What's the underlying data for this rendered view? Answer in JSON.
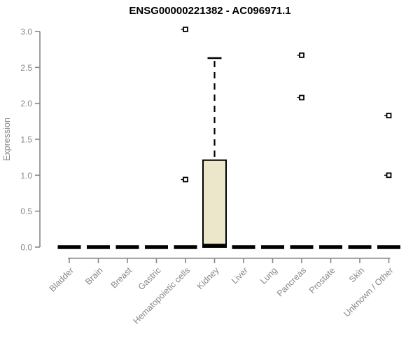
{
  "chart_data": {
    "type": "boxplot",
    "title": "ENSG00000221382 - AC096971.1",
    "ylabel": "Expression",
    "xlabel": "",
    "ylim": [
      0,
      3.0
    ],
    "yticks": [
      0.0,
      0.5,
      1.0,
      1.5,
      2.0,
      2.5,
      3.0
    ],
    "ytick_labels": [
      "0.0",
      "0.5",
      "1.0",
      "1.5",
      "2.0",
      "2.5",
      "3.0"
    ],
    "grid": "off",
    "legend": "none",
    "categories": [
      "Bladder",
      "Brain",
      "Breast",
      "Gastric",
      "Hematopoietic cells",
      "Kidney",
      "Liver",
      "Lung",
      "Pancreas",
      "Prostate",
      "Skin",
      "Unknown / Other"
    ],
    "boxes": [
      {
        "category": "Bladder",
        "q1": 0,
        "median": 0,
        "q3": 0,
        "whisker_low": 0,
        "whisker_high": 0,
        "outliers": []
      },
      {
        "category": "Brain",
        "q1": 0,
        "median": 0,
        "q3": 0,
        "whisker_low": 0,
        "whisker_high": 0,
        "outliers": []
      },
      {
        "category": "Breast",
        "q1": 0,
        "median": 0,
        "q3": 0,
        "whisker_low": 0,
        "whisker_high": 0,
        "outliers": []
      },
      {
        "category": "Gastric",
        "q1": 0,
        "median": 0,
        "q3": 0,
        "whisker_low": 0,
        "whisker_high": 0,
        "outliers": []
      },
      {
        "category": "Hematopoietic cells",
        "q1": 0,
        "median": 0,
        "q3": 0,
        "whisker_low": 0,
        "whisker_high": 0,
        "outliers": [
          3.03,
          0.94
        ]
      },
      {
        "category": "Kidney",
        "q1": 0,
        "median": 0.02,
        "q3": 1.21,
        "whisker_low": 0,
        "whisker_high": 2.63,
        "outliers": []
      },
      {
        "category": "Liver",
        "q1": 0,
        "median": 0,
        "q3": 0,
        "whisker_low": 0,
        "whisker_high": 0,
        "outliers": []
      },
      {
        "category": "Lung",
        "q1": 0,
        "median": 0,
        "q3": 0,
        "whisker_low": 0,
        "whisker_high": 0,
        "outliers": []
      },
      {
        "category": "Pancreas",
        "q1": 0,
        "median": 0,
        "q3": 0,
        "whisker_low": 0,
        "whisker_high": 0,
        "outliers": [
          2.67,
          2.08
        ]
      },
      {
        "category": "Prostate",
        "q1": 0,
        "median": 0,
        "q3": 0,
        "whisker_low": 0,
        "whisker_high": 0,
        "outliers": []
      },
      {
        "category": "Skin",
        "q1": 0,
        "median": 0,
        "q3": 0,
        "whisker_low": 0,
        "whisker_high": 0,
        "outliers": []
      },
      {
        "category": "Unknown / Other",
        "q1": 0,
        "median": 0,
        "q3": 0,
        "whisker_low": 0,
        "whisker_high": 0,
        "outliers": [
          1.83,
          1.0
        ]
      }
    ],
    "colors": {
      "box_fill": "#ECE7CB",
      "box_stroke": "#000000",
      "median": "#000000",
      "whisker": "#000000",
      "outlier_stroke": "#000000",
      "outlier_fill": "#FFFFFF",
      "axis": "#878787",
      "tick_text": "#878787",
      "title_text": "#000000",
      "background": "#FFFFFF"
    }
  }
}
